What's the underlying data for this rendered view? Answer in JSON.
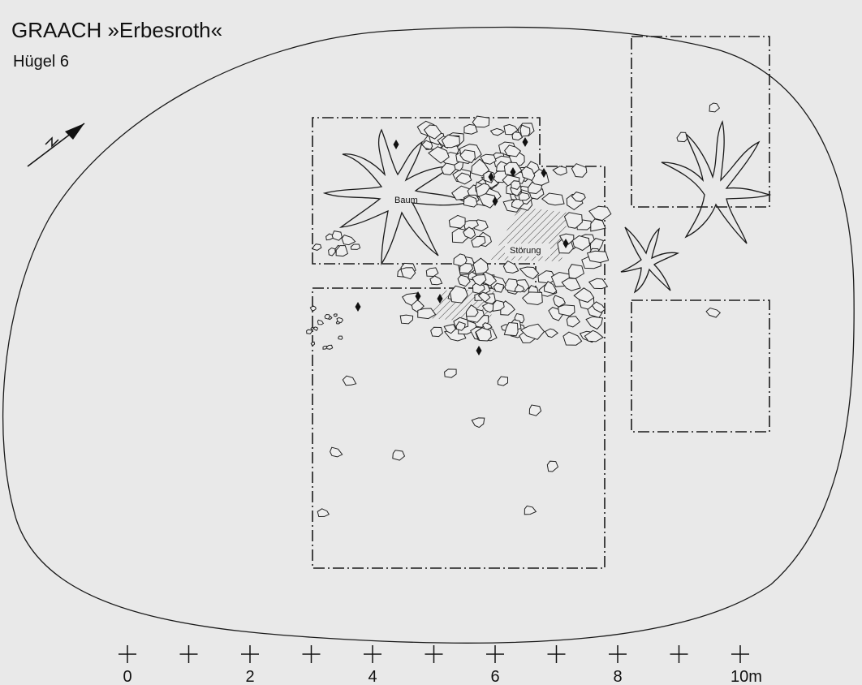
{
  "header": {
    "title": "GRAACH  »Erbesroth«",
    "subtitle": "Hügel 6"
  },
  "labels": {
    "tree": "Baum",
    "disturbance": "Störung"
  },
  "scale": {
    "labels": [
      "0",
      "2",
      "4",
      "6",
      "8",
      "10m"
    ]
  }
}
